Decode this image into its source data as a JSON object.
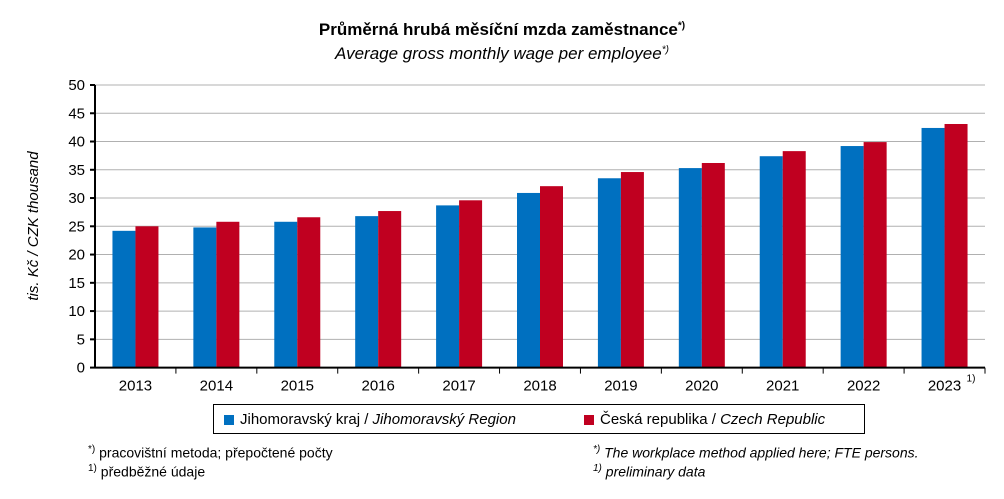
{
  "chart_data": {
    "type": "bar",
    "title": "Průměrná hrubá měsíční mzda zaměstnance",
    "title_sup": "*)",
    "subtitle": "Average gross monthly wage per employee",
    "subtitle_sup": "*)",
    "ylabel": "tis. Kč / CZK thousand",
    "ylim": [
      0,
      50
    ],
    "yticks": [
      "0",
      "5",
      "10",
      "15",
      "20",
      "25",
      "30",
      "35",
      "40",
      "45",
      "50"
    ],
    "categories": [
      "2013",
      "2014",
      "2015",
      "2016",
      "2017",
      "2018",
      "2019",
      "2020",
      "2021",
      "2022",
      "2023"
    ],
    "last_category_sup": "1)",
    "grid": true,
    "legend_position": "bottom",
    "series": [
      {
        "name": "Jihomoravský kraj",
        "name_en": "Jihomoravský Region",
        "color": "#0070C0",
        "values": [
          24.2,
          24.8,
          25.8,
          26.8,
          28.7,
          30.9,
          33.5,
          35.3,
          37.4,
          39.2,
          42.4
        ]
      },
      {
        "name": "Česká republika",
        "name_en": "Czech Republic",
        "color": "#C00020",
        "values": [
          25.0,
          25.8,
          26.6,
          27.7,
          29.6,
          32.1,
          34.6,
          36.2,
          38.3,
          39.9,
          43.1
        ]
      }
    ]
  },
  "footnotes": {
    "cz1_mark": "*)",
    "cz1": "pracovištní metoda;  přepočtené počty",
    "cz2_mark": "1)",
    "cz2": "předběžné údaje",
    "en1_mark": "*)",
    "en1": "The workplace method applied here; FTE persons.",
    "en2_mark": "1)",
    "en2": "preliminary data"
  }
}
